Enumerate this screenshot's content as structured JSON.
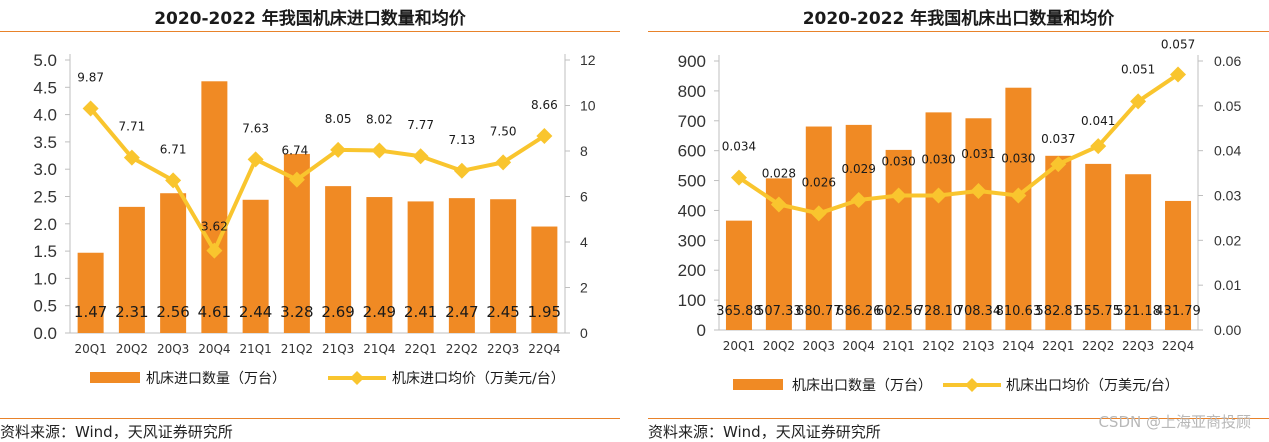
{
  "chart_data": [
    {
      "type": "bar+line",
      "title": "2020-2022 年我国机床进口数量和均价",
      "categories": [
        "20Q1",
        "20Q2",
        "20Q3",
        "20Q4",
        "21Q1",
        "21Q2",
        "21Q3",
        "21Q4",
        "22Q1",
        "22Q2",
        "22Q3",
        "22Q4"
      ],
      "bar_series": {
        "name": "机床进口数量（万台）",
        "values": [
          1.47,
          2.31,
          2.56,
          4.61,
          2.44,
          3.28,
          2.69,
          2.49,
          2.41,
          2.47,
          2.45,
          1.95
        ],
        "labels": [
          "1.47",
          "2.31",
          "2.56",
          "4.61",
          "2.44",
          "3.28",
          "2.69",
          "2.49",
          "2.41",
          "2.47",
          "2.45",
          "1.95"
        ]
      },
      "line_series": {
        "name": "机床进口均价（万美元/台）",
        "values": [
          9.87,
          7.71,
          6.71,
          3.62,
          7.63,
          6.74,
          8.05,
          8.02,
          7.77,
          7.13,
          7.5,
          8.66
        ],
        "labels": [
          "9.87",
          "7.71",
          "6.71",
          "3.62",
          "7.63",
          "6.74",
          "8.05",
          "8.02",
          "7.77",
          "7.13",
          "7.50",
          "8.66"
        ]
      },
      "y_left": {
        "min": 0,
        "max": 5,
        "ticks": [
          "0.0",
          "0.5",
          "1.0",
          "1.5",
          "2.0",
          "2.5",
          "3.0",
          "3.5",
          "4.0",
          "4.5",
          "5.0"
        ]
      },
      "y_right": {
        "min": 0,
        "max": 12,
        "ticks": [
          "0",
          "2",
          "4",
          "6",
          "8",
          "10",
          "12"
        ]
      },
      "legend_position": "bottom",
      "source": "资料来源：Wind，天风证券研究所"
    },
    {
      "type": "bar+line",
      "title": "2020-2022 年我国机床出口数量和均价",
      "categories": [
        "20Q1",
        "20Q2",
        "20Q3",
        "20Q4",
        "21Q1",
        "21Q2",
        "21Q3",
        "21Q4",
        "22Q1",
        "22Q2",
        "22Q3",
        "22Q4"
      ],
      "bar_series": {
        "name": "机床出口数量（万台）",
        "values": [
          365.88,
          507.33,
          680.77,
          686.26,
          602.56,
          728.1,
          708.34,
          810.63,
          582.81,
          555.75,
          521.18,
          431.79
        ],
        "labels": [
          "365.88",
          "507.33",
          "680.77",
          "686.26",
          "602.56",
          "728.10",
          "708.34",
          "810.63",
          "582.81",
          "555.75",
          "521.18",
          "431.79"
        ]
      },
      "line_series": {
        "name": "机床出口均价（万美元/台）",
        "values": [
          0.034,
          0.028,
          0.026,
          0.029,
          0.03,
          0.03,
          0.031,
          0.03,
          0.037,
          0.041,
          0.051,
          0.057
        ],
        "labels": [
          "0.034",
          "0.028",
          "0.026",
          "0.029",
          "0.030",
          "0.030",
          "0.031",
          "0.030",
          "0.037",
          "0.041",
          "0.051",
          "0.057"
        ]
      },
      "y_left": {
        "min": 0,
        "max": 900,
        "ticks": [
          "0",
          "100",
          "200",
          "300",
          "400",
          "500",
          "600",
          "700",
          "800",
          "900"
        ]
      },
      "y_right": {
        "min": 0,
        "max": 0.06,
        "ticks": [
          "0.00",
          "0.01",
          "0.02",
          "0.03",
          "0.04",
          "0.05",
          "0.06"
        ]
      },
      "legend_position": "bottom",
      "source": "资料来源：Wind，天风证券研究所"
    }
  ],
  "watermark": "CSDN @上海亚商投顾",
  "colors": {
    "bar": "#f08a24",
    "line": "#f9c52e",
    "axis": "#bfbfbf",
    "text": "#333333",
    "rule": "#e8822a"
  }
}
